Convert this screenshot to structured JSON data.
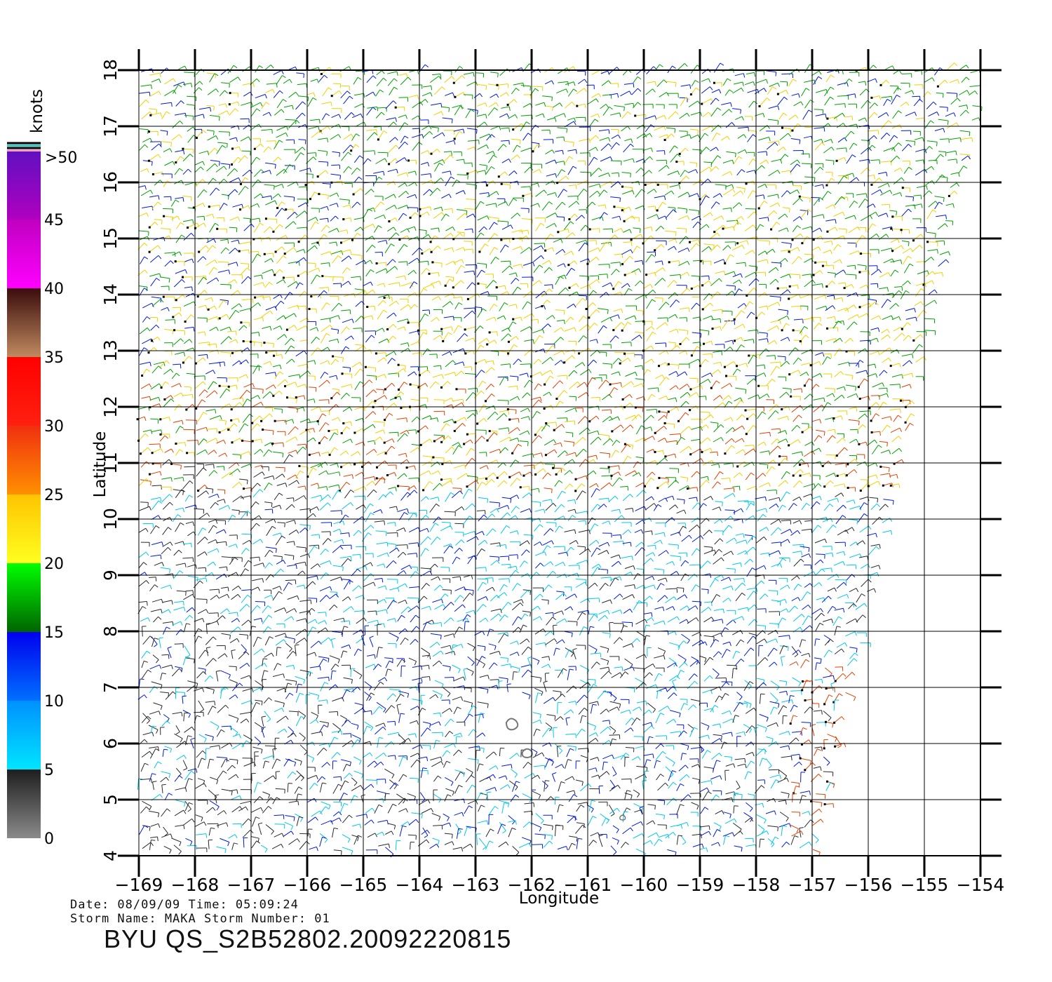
{
  "map": {
    "xlabel": "Longitude",
    "ylabel": "Latitude",
    "lon_range": [
      -169,
      -154
    ],
    "lat_range": [
      4,
      18
    ],
    "lon_ticks": [
      "-169",
      "-168",
      "-167",
      "-166",
      "-165",
      "-164",
      "-163",
      "-162",
      "-161",
      "-160",
      "-159",
      "-158",
      "-157",
      "-156",
      "-155",
      "-154"
    ],
    "lat_ticks": [
      "4",
      "5",
      "6",
      "7",
      "8",
      "9",
      "10",
      "11",
      "12",
      "13",
      "14",
      "15",
      "16",
      "17",
      "18"
    ],
    "grid": true
  },
  "colorbar": {
    "unit": "knots",
    "labels": [
      "0",
      "5",
      "10",
      "15",
      "20",
      "25",
      "30",
      "35",
      "40",
      "45",
      ">50"
    ],
    "bands": [
      {
        "from": 0,
        "to": 5,
        "colors": [
          "#8a8a8a",
          "#1e1e1e"
        ]
      },
      {
        "from": 5,
        "to": 10,
        "colors": [
          "#00e5ff",
          "#0090ff"
        ]
      },
      {
        "from": 10,
        "to": 15,
        "colors": [
          "#0070ff",
          "#0000ee"
        ]
      },
      {
        "from": 15,
        "to": 20,
        "colors": [
          "#006400",
          "#00ff00"
        ]
      },
      {
        "from": 20,
        "to": 25,
        "colors": [
          "#ffff20",
          "#ffc400"
        ]
      },
      {
        "from": 25,
        "to": 30,
        "colors": [
          "#ff9000",
          "#f03010"
        ]
      },
      {
        "from": 30,
        "to": 35,
        "colors": [
          "#ff2010",
          "#ff0000"
        ]
      },
      {
        "from": 35,
        "to": 40,
        "colors": [
          "#c08a60",
          "#3a0c0c"
        ]
      },
      {
        "from": 40,
        "to": 45,
        "colors": [
          "#ff00ff",
          "#c000c0"
        ]
      },
      {
        "from": 45,
        "to": 50,
        "colors": [
          "#b000c0",
          "#6010c0"
        ]
      }
    ],
    "top_stripes": [
      "#f0a0c0",
      "#000000",
      "#40c8c8",
      "#000000"
    ]
  },
  "wind_colors": {
    "calm": "#2a2a2a",
    "light": "#00c8e6",
    "moderate": "#0018e0",
    "fresh": "#00a000",
    "strong": "#f0d000",
    "gale": "#e04000",
    "flag_dot": "#000000"
  },
  "land_contours": [
    "island-a",
    "island-b",
    "island-c"
  ],
  "info": {
    "date_line": "Date: 08/09/09   Time: 05:09:24",
    "storm_line": "Storm  Name:  MAKA    Storm  Number:  01",
    "file_line": "BYU  QS_S2B52802.20092220815"
  }
}
